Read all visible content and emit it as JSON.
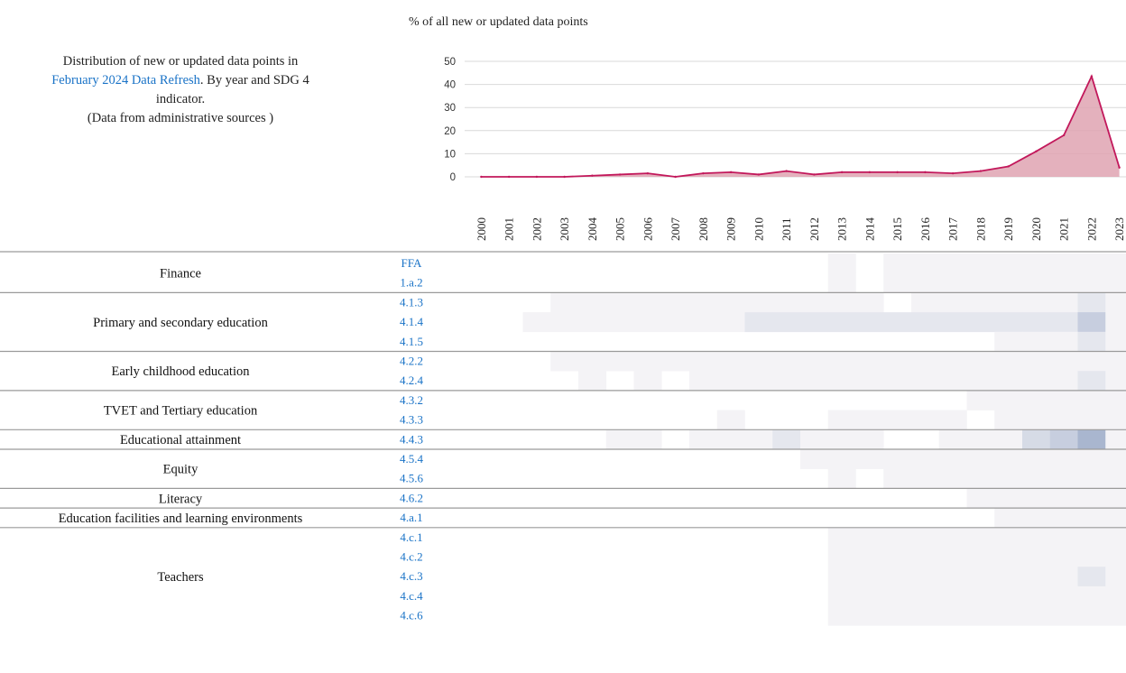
{
  "description": {
    "line1": "Distribution of new or updated data points in",
    "link": "February 2024 Data Refresh",
    "line2_rest": ". By year and SDG 4",
    "line3": "indicator.",
    "line4": "(Data from administrative sources )"
  },
  "colors": {
    "line": "#c2185b",
    "area": "#dfa3b2",
    "grid": "#d9d9d9",
    "heat_low": "#f4f3f6",
    "heat_high": "#a9b6cf",
    "link": "#1a73c7",
    "separator": "#9a9a9a"
  },
  "chart_data": [
    {
      "type": "area",
      "ylabel": "% of all new or updated data points",
      "ylim": [
        0,
        50
      ],
      "yticks": [
        0,
        10,
        20,
        30,
        40,
        50
      ],
      "grid": true,
      "x": [
        "2000",
        "2001",
        "2002",
        "2003",
        "2004",
        "2005",
        "2006",
        "2007",
        "2008",
        "2009",
        "2010",
        "2011",
        "2012",
        "2013",
        "2014",
        "2015",
        "2016",
        "2017",
        "2018",
        "2019",
        "2020",
        "2021",
        "2022",
        "2023"
      ],
      "values": [
        0,
        0,
        0,
        0,
        0.5,
        1,
        1.5,
        0,
        1.5,
        2,
        1,
        2.5,
        1,
        2,
        2,
        2,
        2,
        1.5,
        2.5,
        4.5,
        11,
        18,
        43.5,
        4
      ]
    },
    {
      "type": "heatmap",
      "x": [
        "2000",
        "2001",
        "2002",
        "2003",
        "2004",
        "2005",
        "2006",
        "2007",
        "2008",
        "2009",
        "2010",
        "2011",
        "2012",
        "2013",
        "2014",
        "2015",
        "2016",
        "2017",
        "2018",
        "2019",
        "2020",
        "2021",
        "2022",
        "2023"
      ],
      "groups": [
        {
          "name": "Finance",
          "indicators": [
            {
              "code": "FFA",
              "values": [
                0,
                0,
                0,
                0,
                0,
                0,
                0,
                0,
                0,
                0,
                0,
                0,
                0,
                1,
                0,
                1,
                1,
                1,
                1,
                1,
                1,
                1,
                1,
                1
              ]
            },
            {
              "code": "1.a.2",
              "values": [
                0,
                0,
                0,
                0,
                0,
                0,
                0,
                0,
                0,
                0,
                0,
                0,
                0,
                1,
                0,
                1,
                1,
                1,
                1,
                1,
                1,
                1,
                1,
                1
              ]
            }
          ]
        },
        {
          "name": "Primary and secondary education",
          "indicators": [
            {
              "code": "4.1.3",
              "values": [
                0,
                0,
                0,
                1,
                1,
                1,
                1,
                1,
                1,
                1,
                1,
                1,
                1,
                1,
                1,
                0,
                1,
                1,
                1,
                1,
                1,
                1,
                2,
                1
              ]
            },
            {
              "code": "4.1.4",
              "values": [
                0,
                0,
                1,
                1,
                1,
                1,
                1,
                1,
                1,
                1,
                2,
                2,
                2,
                2,
                2,
                2,
                2,
                2,
                2,
                2,
                2,
                2,
                4,
                1
              ]
            },
            {
              "code": "4.1.5",
              "values": [
                0,
                0,
                0,
                0,
                0,
                0,
                0,
                0,
                0,
                0,
                0,
                0,
                0,
                0,
                0,
                0,
                0,
                0,
                0,
                1,
                1,
                1,
                2,
                1
              ]
            }
          ]
        },
        {
          "name": "Early childhood education",
          "indicators": [
            {
              "code": "4.2.2",
              "values": [
                0,
                0,
                0,
                1,
                1,
                1,
                1,
                1,
                1,
                1,
                1,
                1,
                1,
                1,
                1,
                1,
                1,
                1,
                1,
                1,
                1,
                1,
                1,
                1
              ]
            },
            {
              "code": "4.2.4",
              "values": [
                0,
                0,
                0,
                0,
                1,
                0,
                1,
                0,
                1,
                1,
                1,
                1,
                1,
                1,
                1,
                1,
                1,
                1,
                1,
                1,
                1,
                1,
                2,
                1
              ]
            }
          ]
        },
        {
          "name": "TVET and Tertiary education",
          "indicators": [
            {
              "code": "4.3.2",
              "values": [
                0,
                0,
                0,
                0,
                0,
                0,
                0,
                0,
                0,
                0,
                0,
                0,
                0,
                0,
                0,
                0,
                0,
                0,
                1,
                1,
                1,
                1,
                1,
                1
              ]
            },
            {
              "code": "4.3.3",
              "values": [
                0,
                0,
                0,
                0,
                0,
                0,
                0,
                0,
                0,
                1,
                0,
                0,
                0,
                1,
                1,
                1,
                1,
                1,
                0,
                1,
                1,
                1,
                1,
                1
              ]
            }
          ]
        },
        {
          "name": "Educational attainment",
          "indicators": [
            {
              "code": "4.4.3",
              "values": [
                0,
                0,
                0,
                0,
                0,
                1,
                1,
                0,
                1,
                1,
                1,
                2,
                1,
                1,
                1,
                0,
                0,
                1,
                1,
                1,
                3,
                4,
                6,
                1
              ]
            }
          ]
        },
        {
          "name": "Equity",
          "indicators": [
            {
              "code": "4.5.4",
              "values": [
                0,
                0,
                0,
                0,
                0,
                0,
                0,
                0,
                0,
                0,
                0,
                0,
                1,
                1,
                1,
                1,
                1,
                1,
                1,
                1,
                1,
                1,
                1,
                1
              ]
            },
            {
              "code": "4.5.6",
              "values": [
                0,
                0,
                0,
                0,
                0,
                0,
                0,
                0,
                0,
                0,
                0,
                0,
                0,
                1,
                0,
                1,
                1,
                1,
                1,
                1,
                1,
                1,
                1,
                1
              ]
            }
          ]
        },
        {
          "name": "Literacy",
          "indicators": [
            {
              "code": "4.6.2",
              "values": [
                0,
                0,
                0,
                0,
                0,
                0,
                0,
                0,
                0,
                0,
                0,
                0,
                0,
                0,
                0,
                0,
                0,
                0,
                1,
                1,
                1,
                1,
                1,
                1
              ]
            }
          ]
        },
        {
          "name": "Education facilities and learning environments",
          "indicators": [
            {
              "code": "4.a.1",
              "values": [
                0,
                0,
                0,
                0,
                0,
                0,
                0,
                0,
                0,
                0,
                0,
                0,
                0,
                0,
                0,
                0,
                0,
                0,
                0,
                1,
                1,
                1,
                1,
                1
              ]
            }
          ]
        },
        {
          "name": "Teachers",
          "indicators": [
            {
              "code": "4.c.1",
              "values": [
                0,
                0,
                0,
                0,
                0,
                0,
                0,
                0,
                0,
                0,
                0,
                0,
                0,
                1,
                1,
                1,
                1,
                1,
                1,
                1,
                1,
                1,
                1,
                1
              ]
            },
            {
              "code": "4.c.2",
              "values": [
                0,
                0,
                0,
                0,
                0,
                0,
                0,
                0,
                0,
                0,
                0,
                0,
                0,
                1,
                1,
                1,
                1,
                1,
                1,
                1,
                1,
                1,
                1,
                1
              ]
            },
            {
              "code": "4.c.3",
              "values": [
                0,
                0,
                0,
                0,
                0,
                0,
                0,
                0,
                0,
                0,
                0,
                0,
                0,
                1,
                1,
                1,
                1,
                1,
                1,
                1,
                1,
                1,
                2,
                1
              ]
            },
            {
              "code": "4.c.4",
              "values": [
                0,
                0,
                0,
                0,
                0,
                0,
                0,
                0,
                0,
                0,
                0,
                0,
                0,
                1,
                1,
                1,
                1,
                1,
                1,
                1,
                1,
                1,
                1,
                1
              ]
            },
            {
              "code": "4.c.6",
              "values": [
                0,
                0,
                0,
                0,
                0,
                0,
                0,
                0,
                0,
                0,
                0,
                0,
                0,
                1,
                1,
                1,
                1,
                1,
                1,
                1,
                1,
                1,
                1,
                1
              ]
            }
          ]
        }
      ]
    }
  ]
}
